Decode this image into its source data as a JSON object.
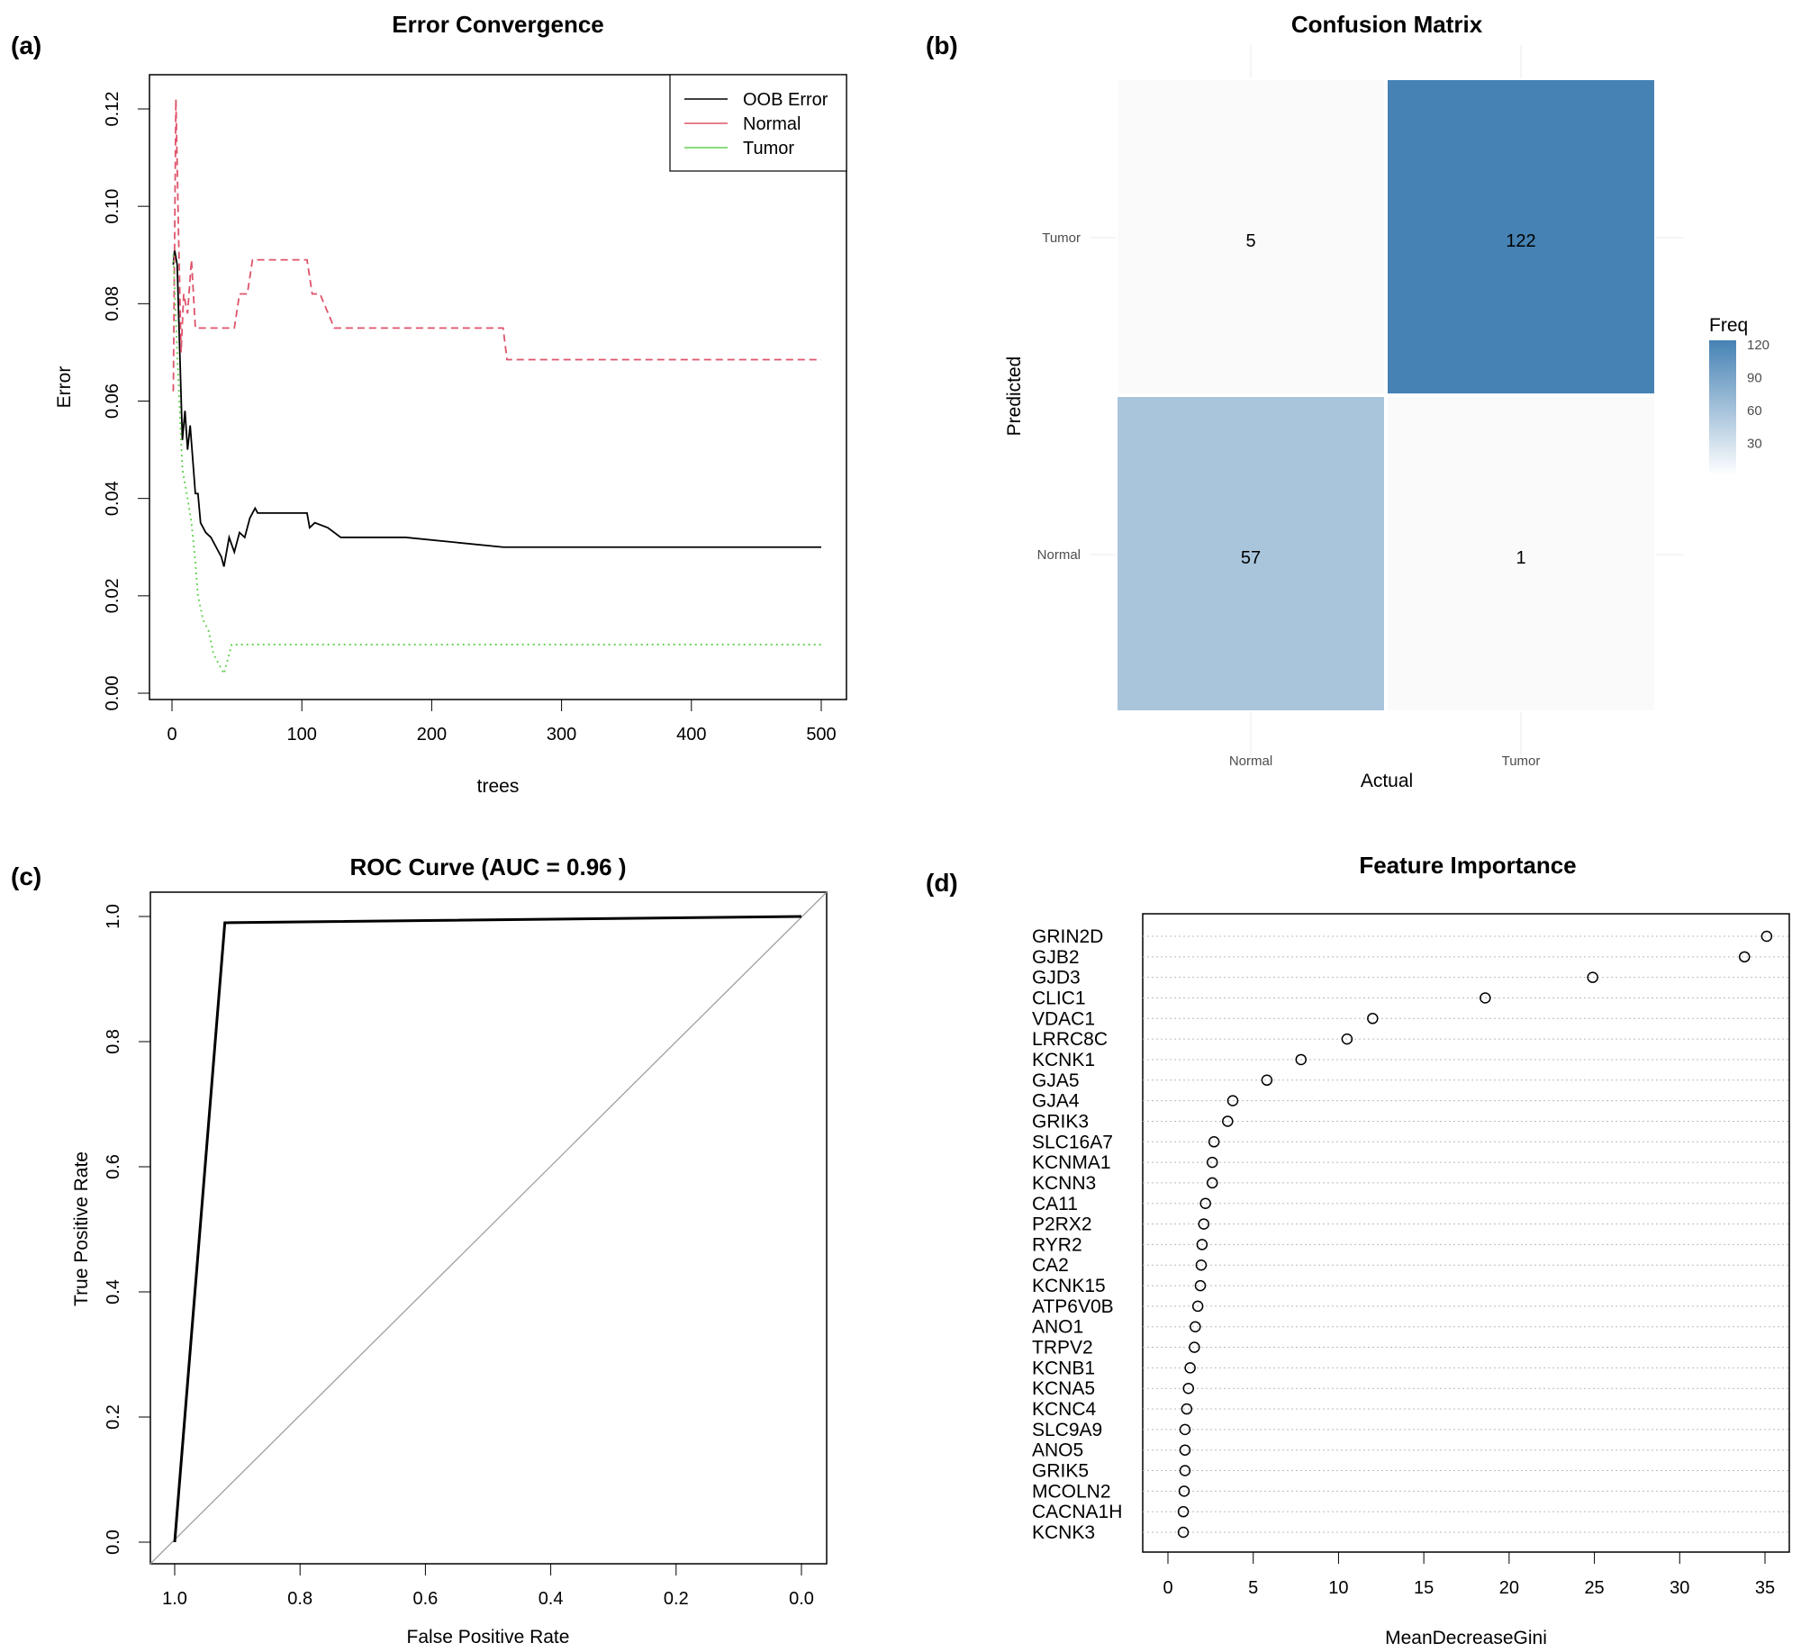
{
  "chart_data": [
    {
      "panel": "(a)",
      "type": "line",
      "title": "Error Convergence",
      "xlabel": "trees",
      "ylabel": "Error",
      "xlim": [
        0,
        500
      ],
      "ylim": [
        0,
        0.12
      ],
      "xticks": [
        0,
        100,
        200,
        300,
        400,
        500
      ],
      "yticks": [
        "0.00",
        "0.02",
        "0.04",
        "0.06",
        "0.08",
        "0.10",
        "0.12"
      ],
      "legend_position": "top-right",
      "series": [
        {
          "name": "OOB Error",
          "color": "#000000",
          "style": "solid",
          "x": [
            1,
            2,
            4,
            6,
            8,
            10,
            12,
            14,
            16,
            18,
            20,
            22,
            26,
            30,
            34,
            38,
            40,
            44,
            48,
            52,
            56,
            60,
            64,
            66,
            104,
            106,
            110,
            120,
            130,
            180,
            255,
            500
          ],
          "y": [
            0.088,
            0.091,
            0.088,
            0.07,
            0.052,
            0.058,
            0.05,
            0.055,
            0.048,
            0.041,
            0.041,
            0.035,
            0.033,
            0.032,
            0.03,
            0.028,
            0.026,
            0.032,
            0.029,
            0.033,
            0.032,
            0.036,
            0.038,
            0.037,
            0.037,
            0.034,
            0.035,
            0.034,
            0.032,
            0.032,
            0.03,
            0.03
          ]
        },
        {
          "name": "Normal",
          "color": "#DF536B",
          "style": "dashed",
          "x": [
            1,
            3,
            5,
            7,
            9,
            12,
            15,
            18,
            22,
            30,
            40,
            48,
            52,
            58,
            62,
            64,
            104,
            108,
            114,
            125,
            130,
            255,
            258,
            500
          ],
          "y": [
            0.062,
            0.122,
            0.095,
            0.07,
            0.082,
            0.078,
            0.089,
            0.075,
            0.075,
            0.075,
            0.075,
            0.075,
            0.082,
            0.082,
            0.089,
            0.089,
            0.089,
            0.082,
            0.082,
            0.075,
            0.075,
            0.075,
            0.0685,
            0.0685
          ]
        },
        {
          "name": "Tumor",
          "color": "#61D04F",
          "style": "dotted",
          "x": [
            1,
            4,
            8,
            12,
            15,
            18,
            20,
            24,
            28,
            32,
            36,
            40,
            44,
            46,
            60,
            500
          ],
          "y": [
            0.09,
            0.07,
            0.046,
            0.04,
            0.035,
            0.027,
            0.02,
            0.015,
            0.013,
            0.008,
            0.006,
            0.004,
            0.008,
            0.01,
            0.01,
            0.01
          ]
        }
      ]
    },
    {
      "panel": "(b)",
      "type": "heatmap",
      "title": "Confusion Matrix",
      "xlabel": "Actual",
      "ylabel": "Predicted",
      "x_categories": [
        "Normal",
        "Tumor"
      ],
      "y_categories": [
        "Normal",
        "Tumor"
      ],
      "cells": [
        {
          "actual": "Normal",
          "predicted": "Tumor",
          "value": 5
        },
        {
          "actual": "Tumor",
          "predicted": "Tumor",
          "value": 122
        },
        {
          "actual": "Normal",
          "predicted": "Normal",
          "value": 57
        },
        {
          "actual": "Tumor",
          "predicted": "Normal",
          "value": 1
        }
      ],
      "legend_title": "Freq",
      "legend_ticks": [
        30,
        60,
        90,
        120
      ],
      "low_color": "#FFFFFF",
      "high_color": "#4682B4"
    },
    {
      "panel": "(c)",
      "type": "line",
      "title": "ROC Curve (AUC = 0.96 )",
      "xlabel": "False Positive Rate",
      "ylabel": "True Positive Rate",
      "xlim": [
        1.0,
        0.0
      ],
      "ylim": [
        0,
        1
      ],
      "xticks": [
        "1.0",
        "0.8",
        "0.6",
        "0.4",
        "0.2",
        "0.0"
      ],
      "yticks": [
        "0.0",
        "0.2",
        "0.4",
        "0.6",
        "0.8",
        "1.0"
      ],
      "series": [
        {
          "x": [
            1.0,
            0.92,
            0.0
          ],
          "y": [
            0.0,
            0.99,
            1.0
          ],
          "color": "#000000"
        }
      ],
      "reference_line": {
        "color": "#A0A0A0"
      }
    },
    {
      "panel": "(d)",
      "type": "scatter",
      "title": "Feature Importance",
      "xlabel": "MeanDecreaseGini",
      "xlim": [
        0,
        35
      ],
      "xticks": [
        0,
        5,
        10,
        15,
        20,
        25,
        30,
        35
      ],
      "categories": [
        "GRIN2D",
        "GJB2",
        "GJD3",
        "CLIC1",
        "VDAC1",
        "LRRC8C",
        "KCNK1",
        "GJA5",
        "GJA4",
        "GRIK3",
        "SLC16A7",
        "KCNMA1",
        "KCNN3",
        "CA11",
        "P2RX2",
        "RYR2",
        "CA2",
        "KCNK15",
        "ATP6V0B",
        "ANO1",
        "TRPV2",
        "KCNB1",
        "KCNA5",
        "KCNC4",
        "SLC9A9",
        "ANO5",
        "GRIK5",
        "MCOLN2",
        "CACNA1H",
        "KCNK3"
      ],
      "values": [
        35.1,
        33.8,
        24.9,
        18.6,
        12.0,
        10.5,
        7.8,
        5.8,
        3.8,
        3.5,
        2.7,
        2.6,
        2.6,
        2.2,
        2.1,
        2.0,
        1.95,
        1.9,
        1.75,
        1.6,
        1.55,
        1.3,
        1.2,
        1.1,
        1.0,
        1.0,
        1.0,
        0.95,
        0.9,
        0.9
      ]
    }
  ]
}
